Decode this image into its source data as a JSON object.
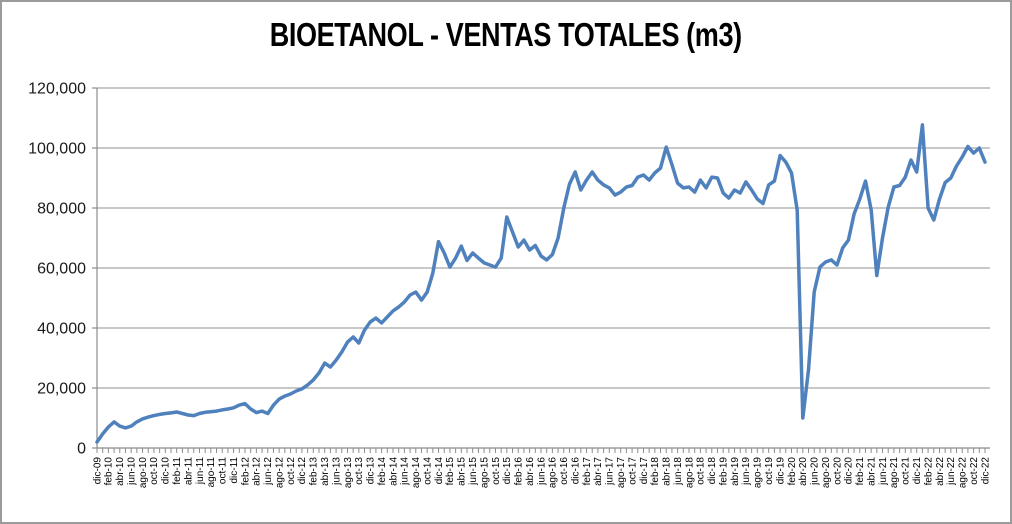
{
  "window": {
    "background": "#ffffff",
    "border_color": "#9b9b9b"
  },
  "chart_data": {
    "type": "line",
    "title": "BIOETANOL - VENTAS TOTALES (m3)",
    "xlabel": "",
    "ylabel": "",
    "ylim": [
      0,
      120000
    ],
    "y_tick_interval": 20000,
    "y_tick_labels": [
      "0",
      "20,000",
      "40,000",
      "60,000",
      "80,000",
      "100,000",
      "120,000"
    ],
    "grid": "horizontal",
    "legend": "none",
    "grid_color": "#a6a6a6",
    "axis_color": "#8c8c8c",
    "label_color": "#1a1a1a",
    "x_axis": {
      "start_label": "dic-09",
      "end_label": "dic-22",
      "tick_every_months": 1,
      "label_every_months": 2
    },
    "x_tick_labels": [
      "dic-09",
      "feb-10",
      "abr-10",
      "jun-10",
      "ago-10",
      "oct-10",
      "dic-10",
      "feb-11",
      "abr-11",
      "jun-11",
      "ago-11",
      "oct-11",
      "dic-11",
      "feb-12",
      "abr-12",
      "jun-12",
      "ago-12",
      "oct-12",
      "dic-12",
      "feb-13",
      "abr-13",
      "jun-13",
      "ago-13",
      "oct-13",
      "dic-13",
      "feb-14",
      "abr-14",
      "jun-14",
      "ago-14",
      "oct-14",
      "dic-14",
      "feb-15",
      "abr-15",
      "jun-15",
      "ago-15",
      "oct-15",
      "dic-15",
      "feb-16",
      "abr-16",
      "jun-16",
      "ago-16",
      "oct-16",
      "dic-16",
      "feb-17",
      "abr-17",
      "jun-17",
      "ago-17",
      "oct-17",
      "dic-17",
      "feb-18",
      "abr-18",
      "jun-18",
      "ago-18",
      "oct-18",
      "dic-18",
      "feb-19",
      "abr-19",
      "jun-19",
      "ago-19",
      "oct-19",
      "dic-19",
      "feb-20",
      "abr-20",
      "jun-20",
      "ago-20",
      "oct-20",
      "dic-20",
      "feb-21",
      "abr-21",
      "jun-21",
      "ago-21",
      "oct-21",
      "dic-21",
      "feb-22",
      "abr-22",
      "jun-22",
      "ago-22",
      "oct-22",
      "dic-22"
    ],
    "series": [
      {
        "color": "#4F81BD",
        "line_width": 3.5,
        "points_are_monthly": true,
        "values": [
          2000,
          4700,
          7000,
          8700,
          7300,
          6700,
          7300,
          8700,
          9700,
          10300,
          10800,
          11200,
          11500,
          11700,
          12000,
          11500,
          11000,
          10800,
          11500,
          11900,
          12100,
          12300,
          12700,
          13000,
          13400,
          14300,
          14800,
          13000,
          11800,
          12300,
          11500,
          14300,
          16300,
          17300,
          18000,
          19000,
          19700,
          21000,
          22700,
          25000,
          28300,
          27000,
          29300,
          32000,
          35300,
          37000,
          35000,
          39300,
          42000,
          43300,
          41700,
          43700,
          45700,
          47000,
          48700,
          51000,
          52000,
          49300,
          52000,
          58300,
          68800,
          65000,
          60300,
          63300,
          67300,
          62500,
          65000,
          63300,
          61700,
          61000,
          60300,
          63300,
          77000,
          72000,
          67000,
          69300,
          66000,
          67500,
          64000,
          62700,
          64500,
          70000,
          80000,
          88000,
          92000,
          86000,
          89300,
          92000,
          89300,
          87700,
          86700,
          84300,
          85300,
          87000,
          87500,
          90300,
          91000,
          89300,
          91700,
          93300,
          100300,
          94500,
          88300,
          86700,
          87000,
          85300,
          89300,
          86700,
          90300,
          90000,
          85000,
          83300,
          86000,
          85000,
          88700,
          86000,
          83000,
          81500,
          87700,
          89000,
          97500,
          95300,
          91700,
          79300,
          10000,
          26000,
          52000,
          60300,
          62000,
          62700,
          61000,
          66700,
          69300,
          78000,
          83000,
          89000,
          79300,
          57500,
          70000,
          80300,
          87000,
          87500,
          90300,
          96000,
          92000,
          107700,
          80000,
          76000,
          83000,
          88500,
          90000,
          94000,
          97000,
          100500,
          98300,
          100000,
          95300
        ]
      }
    ]
  }
}
